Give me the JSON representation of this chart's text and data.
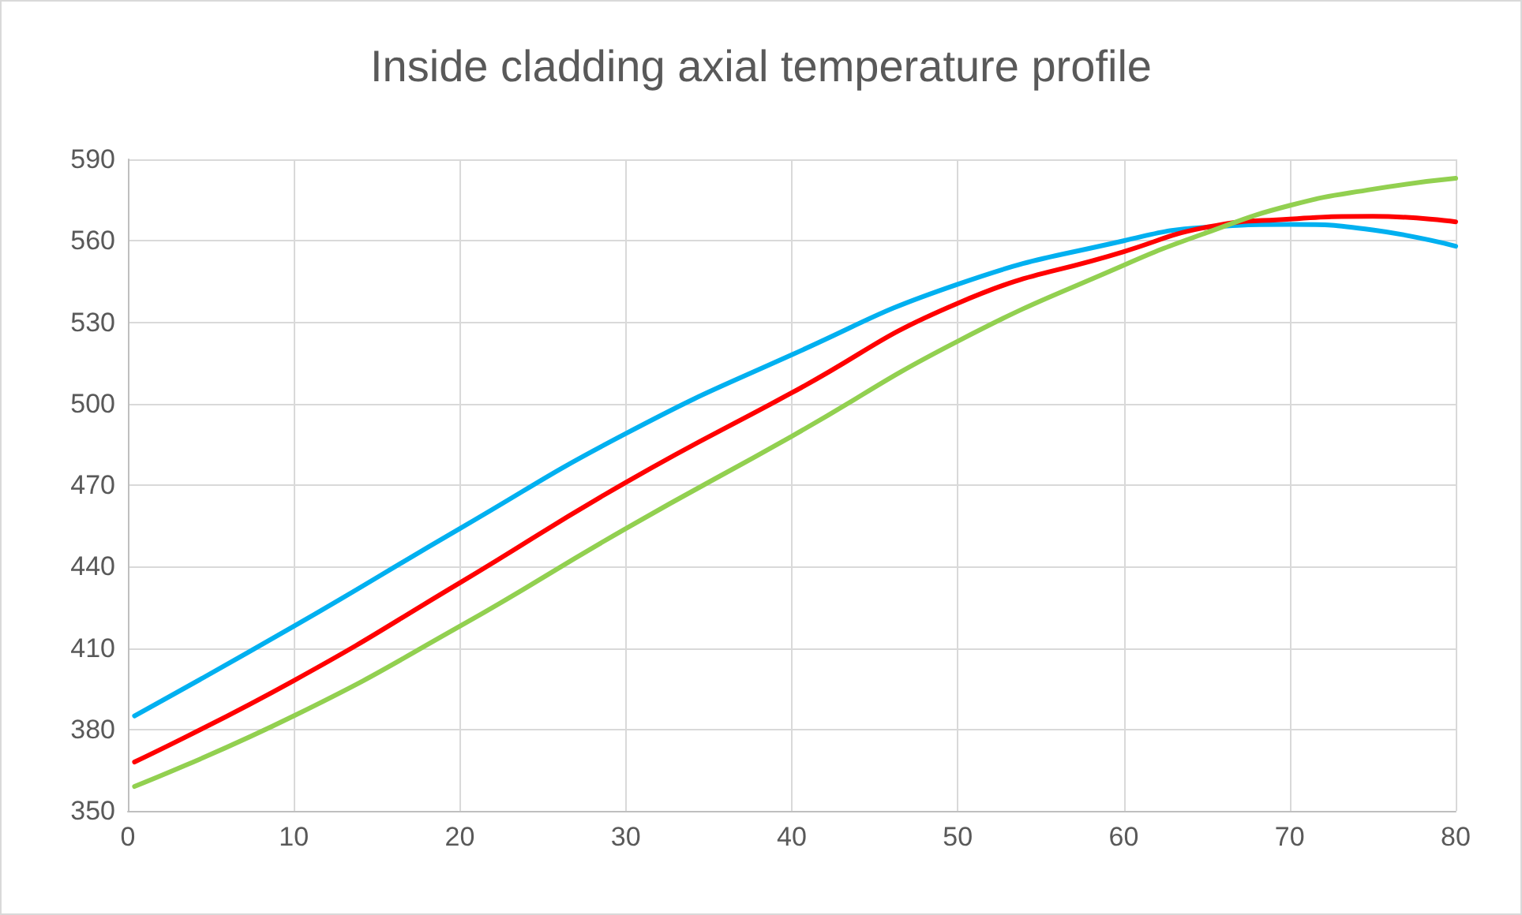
{
  "chart_data": {
    "type": "line",
    "title": "Inside cladding axial temperature profile",
    "x": [
      0.4,
      10,
      20,
      30,
      40,
      50,
      60,
      65,
      70,
      75,
      80
    ],
    "series": [
      {
        "color": "#00b0f0",
        "values": [
          385,
          418,
          454,
          489,
          518,
          544,
          560,
          565,
          566,
          564,
          558
        ]
      },
      {
        "color": "#ff0000",
        "values": [
          368,
          398,
          434,
          471,
          504,
          537,
          556,
          565,
          568,
          569,
          567
        ]
      },
      {
        "color": "#92d050",
        "values": [
          359,
          385,
          418,
          454,
          488,
          523,
          551,
          563,
          573,
          579,
          583
        ]
      }
    ],
    "xlim": [
      0,
      80
    ],
    "xticks": [
      0,
      10,
      20,
      30,
      40,
      50,
      60,
      70,
      80
    ],
    "ylim": [
      350,
      590
    ],
    "yticks": [
      350,
      380,
      410,
      440,
      470,
      500,
      530,
      560,
      590
    ],
    "grid": true,
    "marker": "none",
    "line_style": "solid"
  }
}
